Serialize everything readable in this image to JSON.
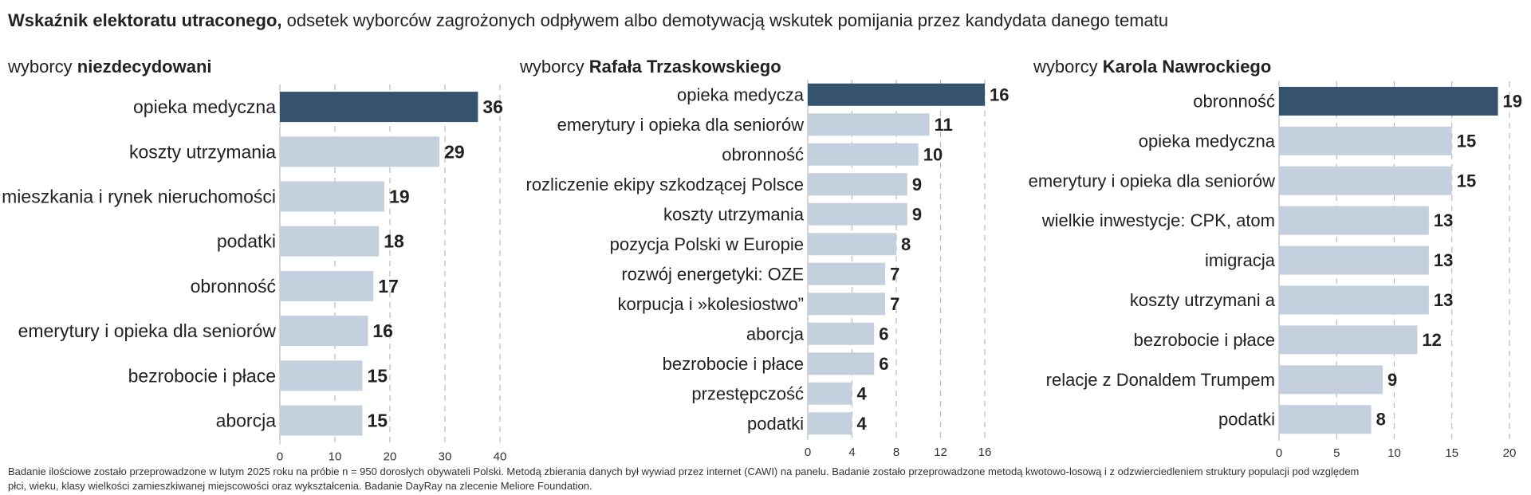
{
  "header": {
    "title_bold": "Wskaźnik elektoratu utraconego,",
    "title_rest": " odsetek wyborców zagrożonych odpływem albo demotywacją wskutek pomijania przez kandydata danego tematu"
  },
  "colors": {
    "highlight_bar": "#35536d",
    "bar": "#c5d0de",
    "grid": "#bbbbbb",
    "text": "#222222"
  },
  "chart_data": [
    {
      "type": "bar",
      "orientation": "horizontal",
      "title_prefix": "wyborcy ",
      "title_bold": "niezdecydowani",
      "categories": [
        "opieka medyczna",
        "koszty utrzymania",
        "mieszkania i rynek nieruchomości",
        "podatki",
        "obronność",
        "emerytury i opieka dla seniorów",
        "bezrobocie i płace",
        "aborcja"
      ],
      "values": [
        36,
        29,
        19,
        18,
        17,
        16,
        15,
        15
      ],
      "xlim": [
        0,
        40
      ],
      "ticks": [
        0,
        10,
        20,
        30,
        40
      ],
      "highlight_index": 0,
      "grid": "dashed vertical"
    },
    {
      "type": "bar",
      "orientation": "horizontal",
      "title_prefix": "wyborcy ",
      "title_bold": "Rafała Trzaskowskiego",
      "categories": [
        "opieka medycza",
        "emerytury i opieka dla seniorów",
        "obronność",
        "rozliczenie ekipy szkodzącej Polsce",
        "koszty utrzymania",
        "pozycja Polski w Europie",
        "rozwój energetyki: OZE",
        "korpucja i »kolesiostwo”",
        "aborcja",
        "bezrobocie i płace",
        "przestępczość",
        "podatki"
      ],
      "values": [
        16,
        11,
        10,
        9,
        9,
        8,
        7,
        7,
        6,
        6,
        4,
        4
      ],
      "xlim": [
        0,
        16
      ],
      "ticks": [
        0,
        4,
        8,
        12,
        16
      ],
      "highlight_index": 0,
      "grid": "dashed vertical"
    },
    {
      "type": "bar",
      "orientation": "horizontal",
      "title_prefix": "wyborcy ",
      "title_bold": "Karola Nawrockiego",
      "categories": [
        "obronność",
        "opieka medyczna",
        "emerytury i opieka dla seniorów",
        "wielkie inwestycje: CPK, atom",
        "imigracja",
        "koszty utrzymani a",
        "bezrobocie i płace",
        "relacje z Donaldem Trumpem",
        "podatki"
      ],
      "values": [
        19,
        15,
        15,
        13,
        13,
        13,
        12,
        9,
        8
      ],
      "xlim": [
        0,
        20
      ],
      "ticks": [
        0,
        5,
        10,
        15,
        20
      ],
      "highlight_index": 0,
      "grid": "dashed vertical"
    }
  ],
  "footnote": "Badanie ilościowe zostało przeprowadzone w lutym 2025 roku na próbie n = 950 dorosłych obywateli Polski. Metodą zbierania danych był wywiad przez internet (CAWI) na panelu. Badanie zostało przeprowadzone metodą kwotowo-losową i z odzwierciedleniem struktury populacji pod względem płci, wieku, klasy wielkości zamieszkiwanej miejscowości oraz wykształcenia. Badanie DayRay na zlecenie Meliore Foundation."
}
